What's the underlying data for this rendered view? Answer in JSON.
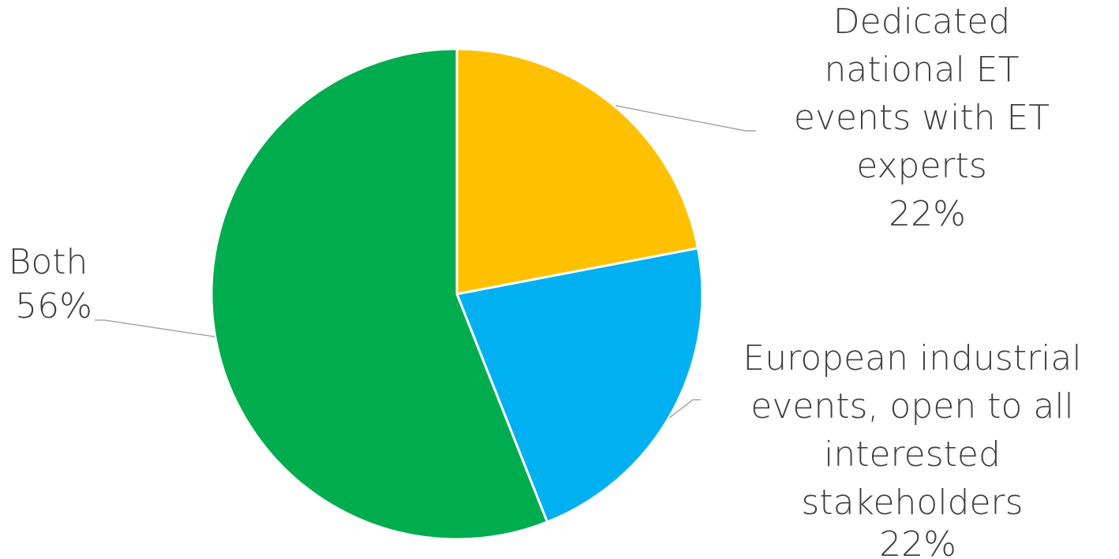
{
  "chart_data": {
    "type": "pie",
    "title": "",
    "slices": [
      {
        "label": [
          "Dedicated",
          "national ET",
          "events with ET",
          "experts"
        ],
        "percent_label": "22%",
        "value": 22,
        "color": "#FFC000"
      },
      {
        "label": [
          "European industrial",
          "events, open to all",
          "interested",
          "stakeholders"
        ],
        "percent_label": "22%",
        "value": 22,
        "color": "#00B0F0"
      },
      {
        "label": [
          "Both"
        ],
        "percent_label": "56%",
        "value": 56,
        "color": "#00AD4E"
      }
    ],
    "start_angle_deg": 0,
    "direction": "clockwise",
    "data_labels": "outside-with-leader-lines",
    "legend": "none"
  }
}
